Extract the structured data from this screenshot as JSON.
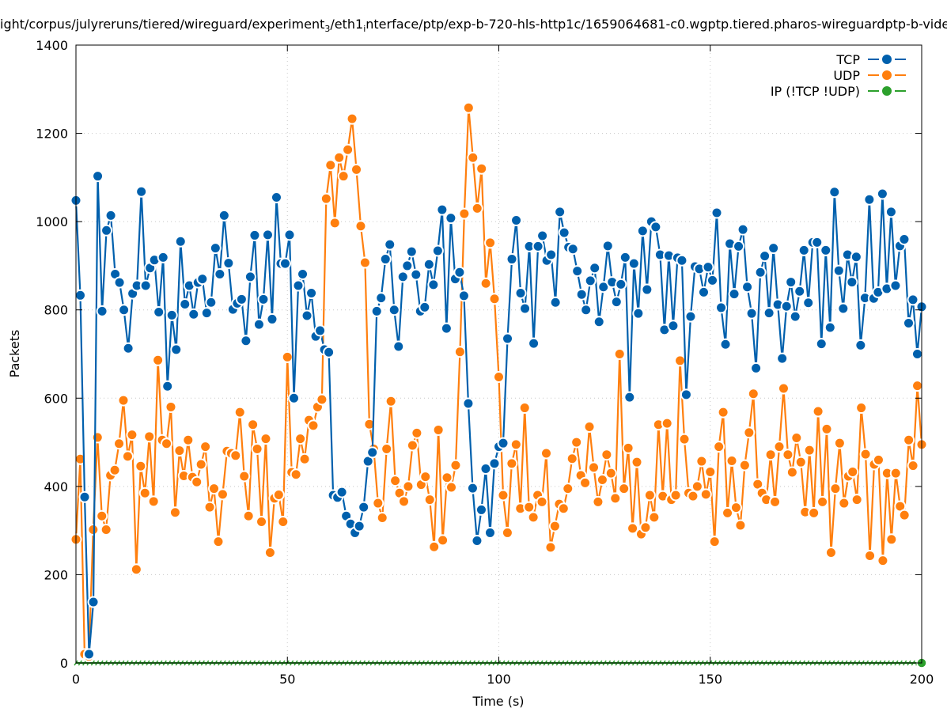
{
  "chart_data": {
    "type": "line",
    "title_parts": [
      {
        "text": "ight/corpus/julyreruns/tiered/wireguard/experiment",
        "sub": false
      },
      {
        "text": "3",
        "sub": true
      },
      {
        "text": "/eth1",
        "sub": false
      },
      {
        "text": "i",
        "sub": true
      },
      {
        "text": "nterface/ptp/exp-b-720-hls-http1c/1659064681-c0.wgptp.tiered.pharos-wireguardptp-b-vide",
        "sub": false
      }
    ],
    "xlabel": "Time (s)",
    "ylabel": "Packets",
    "xlim": [
      0,
      200
    ],
    "ylim": [
      0,
      1400
    ],
    "xticks": [
      "0",
      "50",
      "100",
      "150",
      "200"
    ],
    "yticks": [
      "0",
      "200",
      "400",
      "600",
      "800",
      "1000",
      "1200",
      "1400"
    ],
    "grid": true,
    "legend_position": "top-right",
    "x_note": "samples evenly spaced over 0-200 s",
    "series": [
      {
        "name": "TCP",
        "color": "#0060ad",
        "values": [
          1048,
          833,
          376,
          20,
          138,
          1103,
          797,
          980,
          1014,
          881,
          862,
          800,
          713,
          837,
          855,
          1068,
          855,
          895,
          913,
          795,
          919,
          627,
          788,
          710,
          955,
          813,
          855,
          790,
          862,
          870,
          793,
          817,
          940,
          881,
          1014,
          906,
          801,
          815,
          824,
          730,
          875,
          969,
          767,
          824,
          970,
          779,
          1055,
          905,
          905,
          970,
          600,
          855,
          881,
          787,
          838,
          740,
          753,
          710,
          704,
          380,
          375,
          387,
          333,
          315,
          295,
          310,
          353,
          457,
          477,
          797,
          827,
          915,
          948,
          800,
          717,
          875,
          900,
          932,
          880,
          797,
          806,
          903,
          857,
          934,
          1027,
          758,
          1008,
          870,
          885,
          832,
          588,
          396,
          277,
          347,
          440,
          295,
          452,
          490,
          498,
          735,
          915,
          1003,
          838,
          803,
          944,
          724,
          944,
          968,
          912,
          925,
          817,
          1022,
          975,
          942,
          938,
          888,
          835,
          800,
          866,
          895,
          773,
          852,
          945,
          863,
          818,
          858,
          919,
          602,
          905,
          792,
          979,
          846,
          1000,
          988,
          925,
          755,
          923,
          764,
          918,
          912,
          608,
          785,
          898,
          893,
          840,
          897,
          867,
          1020,
          805,
          722,
          950,
          836,
          944,
          982,
          852,
          792,
          668,
          885,
          922,
          793,
          940,
          812,
          690,
          808,
          863,
          785,
          842,
          935,
          816,
          953,
          953,
          723,
          935,
          760,
          1067,
          889,
          803,
          925,
          863,
          920,
          720,
          827,
          1050,
          826,
          840,
          1063,
          848,
          1022,
          855,
          945,
          960,
          770,
          823,
          700,
          807
        ]
      },
      {
        "name": "UDP",
        "color": "#ff7f0e",
        "values": [
          280,
          462,
          20,
          15,
          302,
          511,
          333,
          302,
          425,
          437,
          497,
          595,
          468,
          517,
          212,
          446,
          385,
          513,
          366,
          686,
          505,
          497,
          580,
          341,
          481,
          424,
          505,
          421,
          410,
          450,
          490,
          353,
          395,
          275,
          382,
          480,
          475,
          470,
          568,
          423,
          333,
          540,
          485,
          320,
          508,
          250,
          373,
          381,
          320,
          693,
          432,
          427,
          508,
          462,
          550,
          538,
          580,
          597,
          1052,
          1128,
          997,
          1145,
          1103,
          1163,
          1233,
          1118,
          990,
          907,
          541,
          485,
          362,
          329,
          485,
          593,
          413,
          385,
          366,
          400,
          493,
          521,
          404,
          422,
          370,
          263,
          528,
          278,
          420,
          398,
          448,
          705,
          1018,
          1258,
          1145,
          1030,
          1120,
          860,
          952,
          825,
          648,
          380,
          295,
          452,
          495,
          350,
          578,
          353,
          330,
          380,
          365,
          475,
          262,
          310,
          360,
          350,
          395,
          463,
          500,
          425,
          408,
          535,
          443,
          365,
          415,
          472,
          430,
          373,
          700,
          395,
          487,
          305,
          455,
          292,
          307,
          380,
          330,
          540,
          378,
          543,
          370,
          380,
          685,
          507,
          385,
          378,
          400,
          457,
          382,
          433,
          275,
          490,
          568,
          340,
          458,
          352,
          312,
          448,
          522,
          610,
          405,
          385,
          370,
          472,
          365,
          490,
          622,
          472,
          432,
          510,
          455,
          342,
          482,
          340,
          570,
          365,
          530,
          250,
          395,
          498,
          362,
          423,
          433,
          370,
          578,
          473,
          243,
          450,
          460,
          232,
          430,
          280,
          430,
          355,
          335,
          505,
          447,
          628,
          495
        ]
      },
      {
        "name": "IP (!TCP  !UDP)",
        "color": "#2ca02c",
        "constant_value": 0,
        "sample_count": 201
      }
    ]
  }
}
